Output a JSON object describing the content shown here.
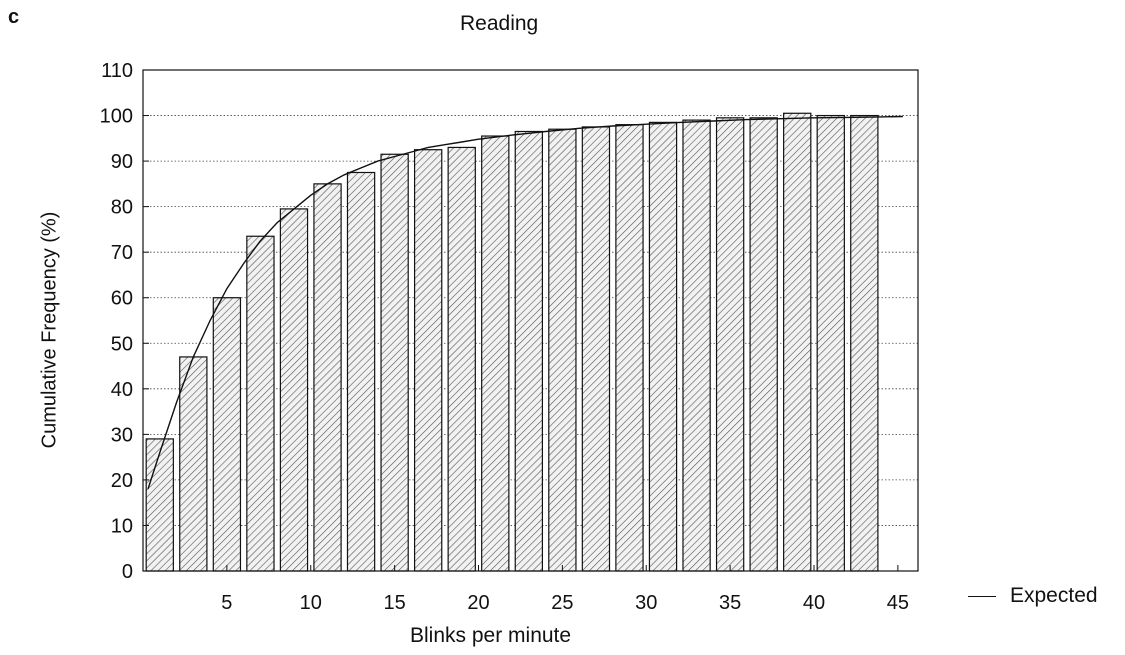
{
  "panel_label": "c",
  "chart_data": {
    "type": "bar",
    "title": "Reading",
    "xlabel": "Blinks per minute",
    "ylabel": "Cumulative Frequency (%)",
    "x_tick_labels": [
      "5",
      "10",
      "15",
      "20",
      "25",
      "30",
      "35",
      "40",
      "45"
    ],
    "y_tick_labels": [
      "0",
      "10",
      "20",
      "30",
      "40",
      "50",
      "60",
      "70",
      "80",
      "90",
      "100",
      "110"
    ],
    "ylim": [
      0,
      110
    ],
    "grid": "horizontal dotted",
    "bar_pattern": "diagonal hatch",
    "bars": [
      {
        "x": 1,
        "value": 29
      },
      {
        "x": 3,
        "value": 47
      },
      {
        "x": 5,
        "value": 60
      },
      {
        "x": 7,
        "value": 73.5
      },
      {
        "x": 9,
        "value": 79.5
      },
      {
        "x": 11,
        "value": 85
      },
      {
        "x": 13,
        "value": 87.5
      },
      {
        "x": 15,
        "value": 91.5
      },
      {
        "x": 17,
        "value": 92.5
      },
      {
        "x": 19,
        "value": 93
      },
      {
        "x": 21,
        "value": 95.5
      },
      {
        "x": 23,
        "value": 96.5
      },
      {
        "x": 25,
        "value": 97
      },
      {
        "x": 27,
        "value": 97.5
      },
      {
        "x": 29,
        "value": 98
      },
      {
        "x": 31,
        "value": 98.5
      },
      {
        "x": 33,
        "value": 99
      },
      {
        "x": 35,
        "value": 99.5
      },
      {
        "x": 37,
        "value": 99.5
      },
      {
        "x": 39,
        "value": 100.5
      },
      {
        "x": 41,
        "value": 100
      },
      {
        "x": 43,
        "value": 100
      }
    ],
    "series": [
      {
        "name": "Expected",
        "type": "line",
        "points": [
          [
            0.3,
            18
          ],
          [
            1,
            26
          ],
          [
            2,
            37
          ],
          [
            3,
            47
          ],
          [
            4,
            55
          ],
          [
            5,
            62
          ],
          [
            6,
            67.5
          ],
          [
            7,
            72.5
          ],
          [
            8,
            76.5
          ],
          [
            9,
            79.5
          ],
          [
            10,
            82.5
          ],
          [
            11,
            85
          ],
          [
            12,
            87
          ],
          [
            13,
            88.5
          ],
          [
            14,
            90
          ],
          [
            15,
            91
          ],
          [
            16,
            92
          ],
          [
            17,
            93
          ],
          [
            18,
            93.6
          ],
          [
            19,
            94.2
          ],
          [
            20,
            94.8
          ],
          [
            22,
            95.7
          ],
          [
            24,
            96.5
          ],
          [
            26,
            97.2
          ],
          [
            28,
            97.7
          ],
          [
            30,
            98.1
          ],
          [
            32,
            98.5
          ],
          [
            34,
            98.8
          ],
          [
            36,
            99.1
          ],
          [
            38,
            99.3
          ],
          [
            40,
            99.5
          ],
          [
            42,
            99.6
          ],
          [
            44,
            99.7
          ],
          [
            45.3,
            99.8
          ]
        ]
      }
    ],
    "legend": {
      "label": "Expected",
      "position": "bottom-right"
    }
  }
}
